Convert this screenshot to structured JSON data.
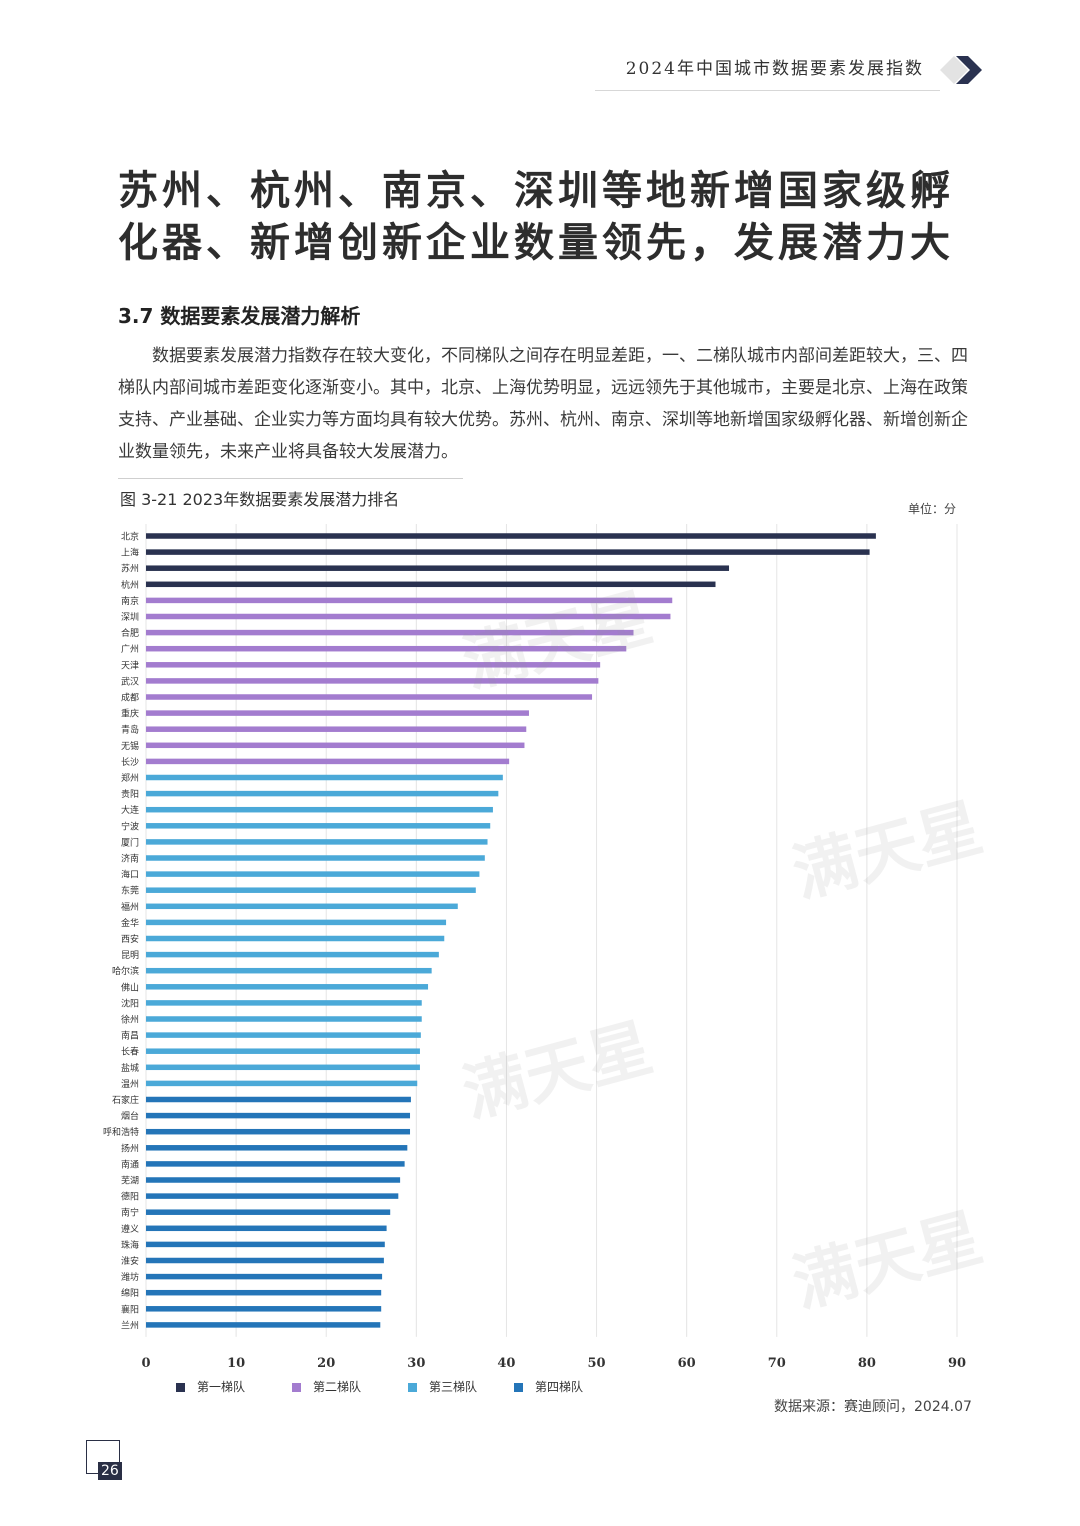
{
  "header": {
    "title": "2024年中国城市数据要素发展指数"
  },
  "main_title": {
    "line1": "苏州、杭州、南京、深圳等地新增国家级孵",
    "line2": "化器、新增创新企业数量领先，发展潜力大"
  },
  "section": {
    "title": "3.7 数据要素发展潜力解析"
  },
  "body_text": "数据要素发展潜力指数存在较大变化，不同梯队之间存在明显差距，一、二梯队城市内部间差距较大，三、四梯队内部间城市差距变化逐渐变小。其中，北京、上海优势明显，远远领先于其他城市，主要是北京、上海在政策支持、产业基础、企业实力等方面均具有较大优势。苏州、杭州、南京、深圳等地新增国家级孵化器、新增创新企业数量领先，未来产业将具备较大发展潜力。",
  "figure": {
    "caption": "图 3-21  2023年数据要素发展潜力排名",
    "unit": "单位：分"
  },
  "source": "数据来源：赛迪顾问，2024.07",
  "page_number": "26",
  "watermark": "满天星",
  "colors": {
    "tier1": "#2a3250",
    "tier2": "#a37ccf",
    "tier3": "#4ba9d8",
    "tier4": "#2475b8"
  },
  "chart_data": {
    "type": "bar",
    "orientation": "horizontal",
    "xlim": [
      0,
      90
    ],
    "xticks": [
      0,
      10,
      20,
      30,
      40,
      50,
      60,
      70,
      80,
      90
    ],
    "grid": true,
    "legend": [
      "第一梯队",
      "第二梯队",
      "第三梯队",
      "第四梯队"
    ],
    "legend_position": "bottom",
    "categories": [
      "北京",
      "上海",
      "苏州",
      "杭州",
      "南京",
      "深圳",
      "合肥",
      "广州",
      "天津",
      "武汉",
      "成都",
      "重庆",
      "青岛",
      "无锡",
      "长沙",
      "郑州",
      "贵阳",
      "大连",
      "宁波",
      "厦门",
      "济南",
      "海口",
      "东莞",
      "福州",
      "金华",
      "西安",
      "昆明",
      "哈尔滨",
      "佛山",
      "沈阳",
      "徐州",
      "南昌",
      "长春",
      "盐城",
      "温州",
      "石家庄",
      "烟台",
      "呼和浩特",
      "扬州",
      "南通",
      "芜湖",
      "德阳",
      "南宁",
      "遵义",
      "珠海",
      "淮安",
      "潍坊",
      "绵阳",
      "襄阳",
      "兰州"
    ],
    "values": [
      81.0,
      80.3,
      64.7,
      63.2,
      58.4,
      58.2,
      54.1,
      53.3,
      50.4,
      50.2,
      49.5,
      42.5,
      42.2,
      42.0,
      40.3,
      39.6,
      39.1,
      38.5,
      38.2,
      37.9,
      37.6,
      37.0,
      36.6,
      34.6,
      33.3,
      33.1,
      32.5,
      31.7,
      31.3,
      30.6,
      30.6,
      30.5,
      30.4,
      30.4,
      30.1,
      29.4,
      29.3,
      29.3,
      29.0,
      28.7,
      28.2,
      28.0,
      27.1,
      26.7,
      26.5,
      26.4,
      26.2,
      26.1,
      26.1,
      26.0
    ],
    "tiers": [
      1,
      1,
      1,
      1,
      2,
      2,
      2,
      2,
      2,
      2,
      2,
      2,
      2,
      2,
      2,
      3,
      3,
      3,
      3,
      3,
      3,
      3,
      3,
      3,
      3,
      3,
      3,
      3,
      3,
      3,
      3,
      3,
      3,
      3,
      3,
      4,
      4,
      4,
      4,
      4,
      4,
      4,
      4,
      4,
      4,
      4,
      4,
      4,
      4,
      4
    ]
  }
}
